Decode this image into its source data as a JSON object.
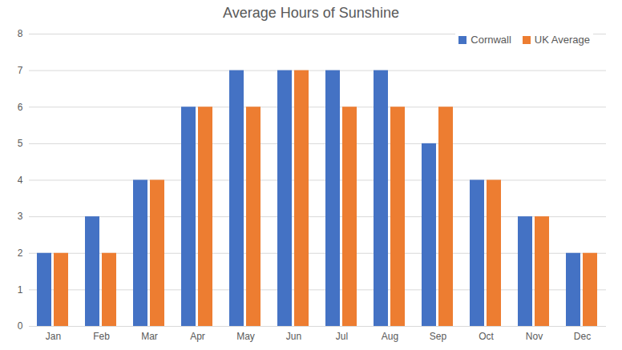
{
  "chart_data": {
    "type": "bar",
    "title": "Average Hours of Sunshine",
    "categories": [
      "Jan",
      "Feb",
      "Mar",
      "Apr",
      "May",
      "Jun",
      "Jul",
      "Aug",
      "Sep",
      "Oct",
      "Nov",
      "Dec"
    ],
    "series": [
      {
        "name": "Cornwall",
        "color": "#4472c4",
        "values": [
          2,
          3,
          4,
          6,
          7,
          7,
          7,
          7,
          5,
          4,
          3,
          2
        ]
      },
      {
        "name": "UK Average",
        "color": "#ed7d31",
        "values": [
          2,
          2,
          4,
          6,
          6,
          7,
          6,
          6,
          6,
          4,
          3,
          2
        ]
      }
    ],
    "ylim": [
      0,
      8
    ],
    "yticks": [
      0,
      1,
      2,
      3,
      4,
      5,
      6,
      7,
      8
    ],
    "grid": true,
    "legend": "top-right"
  }
}
